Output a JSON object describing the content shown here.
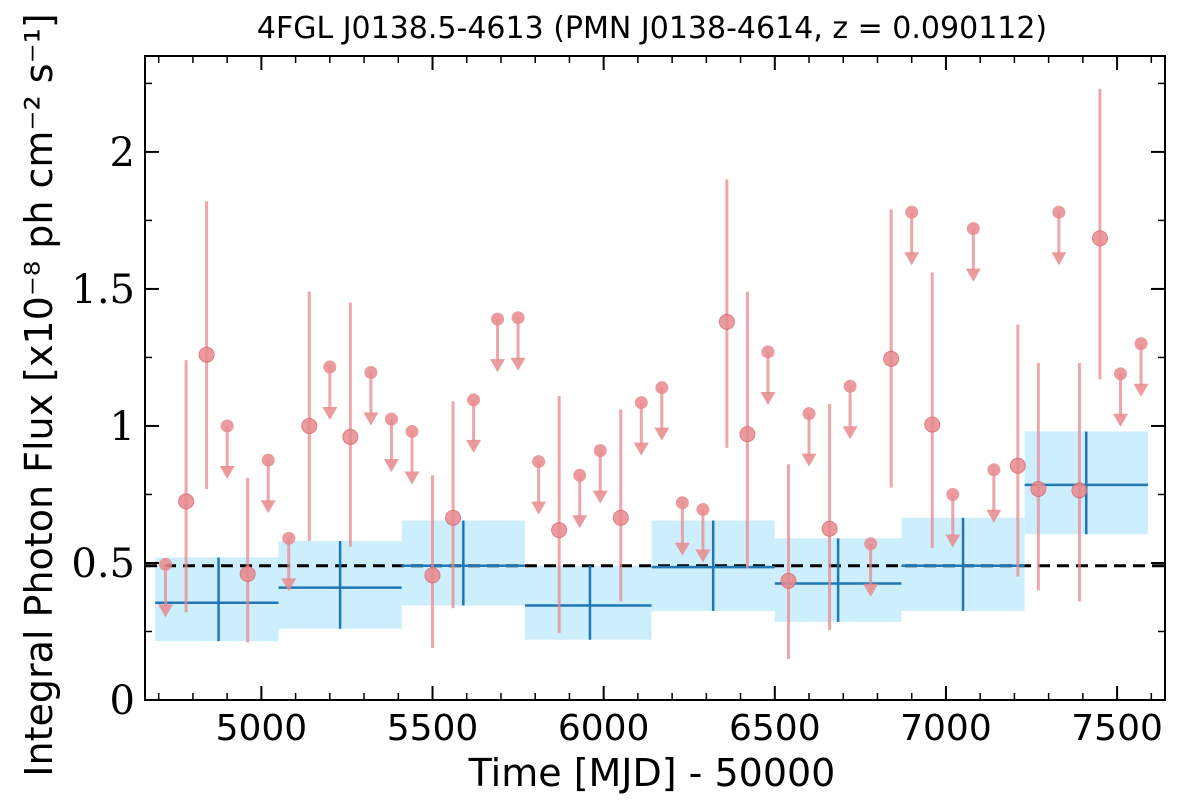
{
  "chart_data": {
    "type": "scatter",
    "title": "4FGL J0138.5-4613 (PMN J0138-4614, z = 0.090112)",
    "xlabel": "Time [MJD] - 50000",
    "ylabel": "Integral Photon Flux [x10⁻⁸ ph cm⁻² s⁻¹]",
    "xlim": [
      4660,
      7640
    ],
    "ylim": [
      0,
      2.35
    ],
    "x_ticks": [
      5000,
      5500,
      6000,
      6500,
      7000,
      7500
    ],
    "x_tick_labels": [
      "5000",
      "5500",
      "6000",
      "6500",
      "7000",
      "7500"
    ],
    "y_ticks": [
      0,
      0.5,
      1,
      1.5,
      2
    ],
    "y_tick_labels": [
      "0",
      "0.5",
      "1",
      "1.5",
      "2"
    ],
    "mean_flux": 0.49,
    "colors": {
      "short_bins": "#e8898d",
      "long_bins": "#1f77b4",
      "band": "#cdeefd",
      "mean_line": "#000000"
    },
    "long_bins": [
      {
        "x_low": 4690,
        "x_high": 5050,
        "x": 4875,
        "y": 0.355,
        "y_low": 0.215,
        "y_high": 0.52
      },
      {
        "x_low": 5050,
        "x_high": 5410,
        "x": 5230,
        "y": 0.41,
        "y_low": 0.26,
        "y_high": 0.58
      },
      {
        "x_low": 5410,
        "x_high": 5770,
        "x": 5590,
        "y": 0.49,
        "y_low": 0.345,
        "y_high": 0.655
      },
      {
        "x_low": 5770,
        "x_high": 6140,
        "x": 5960,
        "y": 0.345,
        "y_low": 0.22,
        "y_high": 0.49
      },
      {
        "x_low": 6140,
        "x_high": 6500,
        "x": 6320,
        "y": 0.485,
        "y_low": 0.325,
        "y_high": 0.655
      },
      {
        "x_low": 6500,
        "x_high": 6870,
        "x": 6685,
        "y": 0.425,
        "y_low": 0.285,
        "y_high": 0.59
      },
      {
        "x_low": 6870,
        "x_high": 7230,
        "x": 7050,
        "y": 0.49,
        "y_low": 0.325,
        "y_high": 0.665
      },
      {
        "x_low": 7230,
        "x_high": 7590,
        "x": 7410,
        "y": 0.785,
        "y_low": 0.605,
        "y_high": 0.98
      }
    ],
    "short_detections": [
      {
        "x": 4780,
        "y": 0.725,
        "y_low": 0.32,
        "y_high": 1.24
      },
      {
        "x": 4840,
        "y": 1.26,
        "y_low": 0.77,
        "y_high": 1.82
      },
      {
        "x": 4960,
        "y": 0.46,
        "y_low": 0.21,
        "y_high": 0.81
      },
      {
        "x": 5140,
        "y": 1.0,
        "y_low": 0.58,
        "y_high": 1.49
      },
      {
        "x": 5260,
        "y": 0.96,
        "y_low": 0.56,
        "y_high": 1.45
      },
      {
        "x": 5500,
        "y": 0.455,
        "y_low": 0.19,
        "y_high": 0.82
      },
      {
        "x": 5560,
        "y": 0.665,
        "y_low": 0.335,
        "y_high": 1.09
      },
      {
        "x": 5870,
        "y": 0.62,
        "y_low": 0.245,
        "y_high": 1.11
      },
      {
        "x": 6050,
        "y": 0.665,
        "y_low": 0.36,
        "y_high": 1.06
      },
      {
        "x": 6360,
        "y": 1.38,
        "y_low": 0.92,
        "y_high": 1.9
      },
      {
        "x": 6420,
        "y": 0.97,
        "y_low": 0.48,
        "y_high": 1.49
      },
      {
        "x": 6540,
        "y": 0.435,
        "y_low": 0.15,
        "y_high": 0.86
      },
      {
        "x": 6660,
        "y": 0.625,
        "y_low": 0.255,
        "y_high": 1.08
      },
      {
        "x": 6840,
        "y": 1.245,
        "y_low": 0.775,
        "y_high": 1.79
      },
      {
        "x": 6960,
        "y": 1.005,
        "y_low": 0.555,
        "y_high": 1.56
      },
      {
        "x": 7210,
        "y": 0.855,
        "y_low": 0.45,
        "y_high": 1.37
      },
      {
        "x": 7270,
        "y": 0.77,
        "y_low": 0.4,
        "y_high": 1.23
      },
      {
        "x": 7390,
        "y": 0.765,
        "y_low": 0.36,
        "y_high": 1.23
      },
      {
        "x": 7450,
        "y": 1.685,
        "y_low": 1.17,
        "y_high": 2.23
      }
    ],
    "short_upper_limits": [
      {
        "x": 4720,
        "y": 0.495
      },
      {
        "x": 4900,
        "y": 1.0
      },
      {
        "x": 5020,
        "y": 0.875
      },
      {
        "x": 5080,
        "y": 0.59
      },
      {
        "x": 5200,
        "y": 1.215
      },
      {
        "x": 5320,
        "y": 1.195
      },
      {
        "x": 5380,
        "y": 1.025
      },
      {
        "x": 5440,
        "y": 0.98
      },
      {
        "x": 5620,
        "y": 1.095
      },
      {
        "x": 5690,
        "y": 1.39
      },
      {
        "x": 5750,
        "y": 1.395
      },
      {
        "x": 5810,
        "y": 0.87
      },
      {
        "x": 5930,
        "y": 0.82
      },
      {
        "x": 5990,
        "y": 0.91
      },
      {
        "x": 6110,
        "y": 1.085
      },
      {
        "x": 6170,
        "y": 1.14
      },
      {
        "x": 6230,
        "y": 0.72
      },
      {
        "x": 6290,
        "y": 0.695
      },
      {
        "x": 6480,
        "y": 1.27
      },
      {
        "x": 6600,
        "y": 1.045
      },
      {
        "x": 6720,
        "y": 1.145
      },
      {
        "x": 6780,
        "y": 0.57
      },
      {
        "x": 6900,
        "y": 1.78
      },
      {
        "x": 7020,
        "y": 0.75
      },
      {
        "x": 7080,
        "y": 1.72
      },
      {
        "x": 7140,
        "y": 0.84
      },
      {
        "x": 7330,
        "y": 1.78
      },
      {
        "x": 7510,
        "y": 1.19
      },
      {
        "x": 7570,
        "y": 1.3
      }
    ]
  }
}
